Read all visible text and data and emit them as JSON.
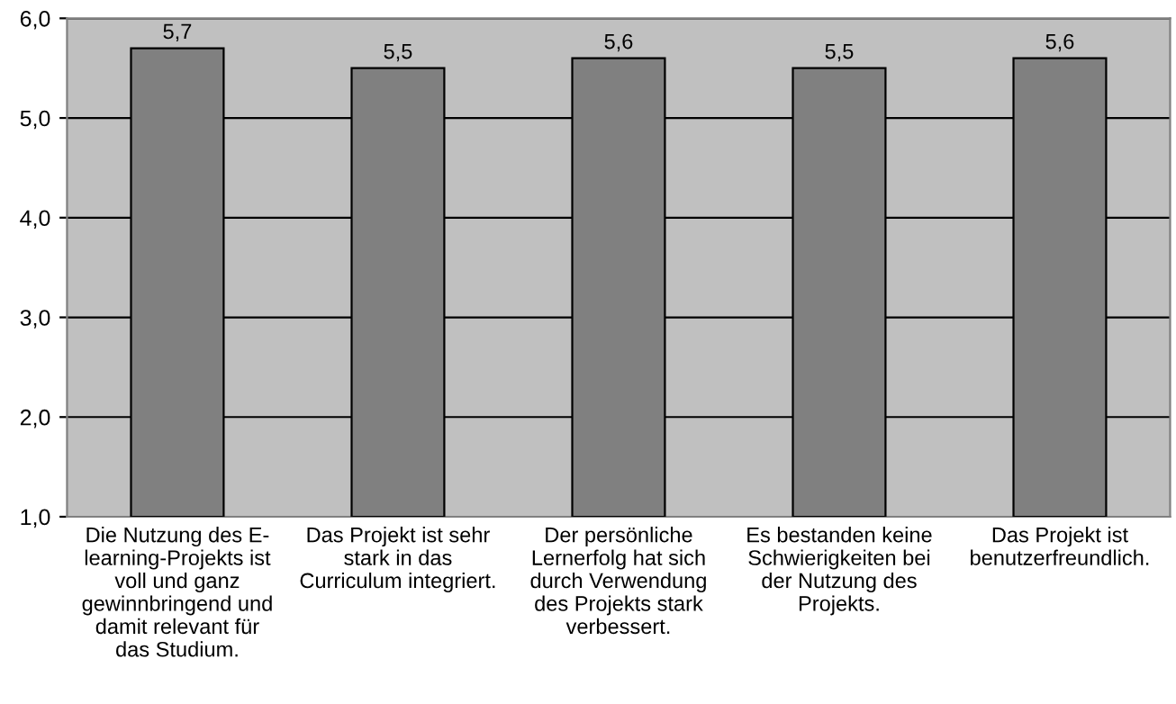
{
  "chart_data": {
    "type": "bar",
    "categories": [
      "Die Nutzung des E-\nlearning-Projekts ist\nvoll und ganz\ngewinnbringend und\ndamit relevant für\ndas Studium.",
      "Das Projekt ist sehr\nstark in das\nCurriculum integriert.",
      "Der persönliche\nLernerfolg hat sich\ndurch Verwendung\ndes Projekts stark\nverbessert.",
      "Es bestanden keine\nSchwierigkeiten bei\nder Nutzung des\nProjekts.",
      "Das Projekt ist\nbenutzerfreundlich."
    ],
    "values": [
      5.7,
      5.5,
      5.6,
      5.5,
      5.6
    ],
    "value_labels": [
      "5,7",
      "5,5",
      "5,6",
      "5,5",
      "5,6"
    ],
    "color": "#808080",
    "ylim": [
      1,
      6
    ],
    "yticks": [
      {
        "value": 1,
        "label": "1,0"
      },
      {
        "value": 2,
        "label": "2,0"
      },
      {
        "value": 3,
        "label": "3,0"
      },
      {
        "value": 4,
        "label": "4,0"
      },
      {
        "value": 5,
        "label": "5,0"
      },
      {
        "value": 6,
        "label": "6,0"
      }
    ],
    "grid": "y"
  }
}
